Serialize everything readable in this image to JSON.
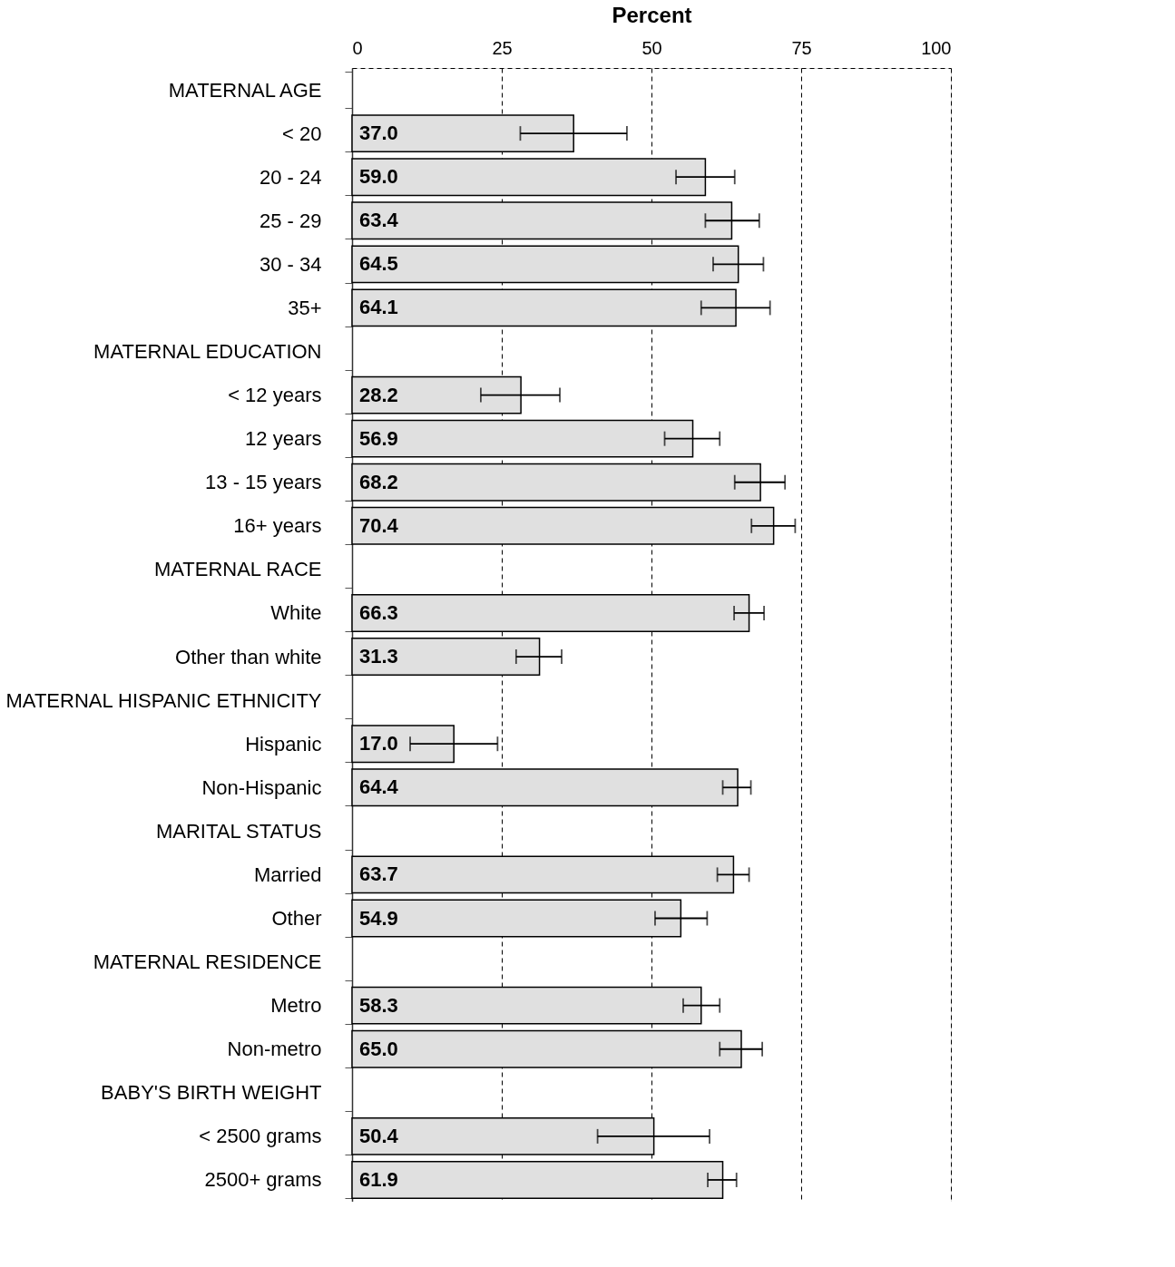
{
  "chart_data": {
    "type": "bar",
    "orientation": "horizontal",
    "xlabel": "Percent",
    "categories": [
      "MATERNAL AGE",
      "< 20",
      "20 - 24",
      "25 - 29",
      "30 - 34",
      "35+",
      "MATERNAL EDUCATION",
      "< 12  years",
      "12 years",
      "13 - 15 years",
      "16+ years",
      "MATERNAL RACE",
      "White",
      "Other than white",
      "MATERNAL HISPANIC ETHNICITY",
      "Hispanic",
      "Non-Hispanic",
      "MARITAL STATUS",
      "Married",
      "Other",
      "MATERNAL RESIDENCE",
      "Metro",
      "Non-metro",
      "BABY'S BIRTH WEIGHT",
      "< 2500 grams",
      "2500+ grams"
    ],
    "values": [
      null,
      37.0,
      59.0,
      63.4,
      64.5,
      64.1,
      null,
      28.2,
      56.9,
      68.2,
      70.4,
      null,
      66.3,
      31.3,
      null,
      17.0,
      64.4,
      null,
      63.7,
      54.9,
      null,
      58.3,
      65.0,
      null,
      50.4,
      61.9
    ],
    "value_labels": [
      null,
      "37.0",
      "59.0",
      "63.4",
      "64.5",
      "64.1",
      null,
      "28.2",
      "56.9",
      "68.2",
      "70.4",
      null,
      "66.3",
      "31.3",
      null,
      "17.0",
      "64.4",
      null,
      "63.7",
      "54.9",
      null,
      "58.3",
      "65.0",
      null,
      "50.4",
      "61.9"
    ],
    "errors": [
      null,
      [
        28.1,
        45.9
      ],
      [
        54.1,
        63.9
      ],
      [
        59.0,
        68.0
      ],
      [
        60.3,
        68.7
      ],
      [
        58.3,
        69.8
      ],
      null,
      [
        21.5,
        34.7
      ],
      [
        52.2,
        61.4
      ],
      [
        63.9,
        72.3
      ],
      [
        66.7,
        74.0
      ],
      null,
      [
        63.8,
        68.8
      ],
      [
        27.4,
        35.0
      ],
      null,
      [
        9.7,
        24.3
      ],
      [
        61.9,
        66.6
      ],
      null,
      [
        61.0,
        66.3
      ],
      [
        50.6,
        59.3
      ],
      null,
      [
        55.3,
        61.4
      ],
      [
        61.4,
        68.5
      ],
      null,
      [
        41.0,
        59.7
      ],
      [
        59.4,
        64.2
      ]
    ],
    "color": "#e0e0e0",
    "xlim": [
      0,
      100
    ],
    "xticks": [
      0,
      25,
      50,
      75,
      100
    ],
    "grid": "x"
  }
}
